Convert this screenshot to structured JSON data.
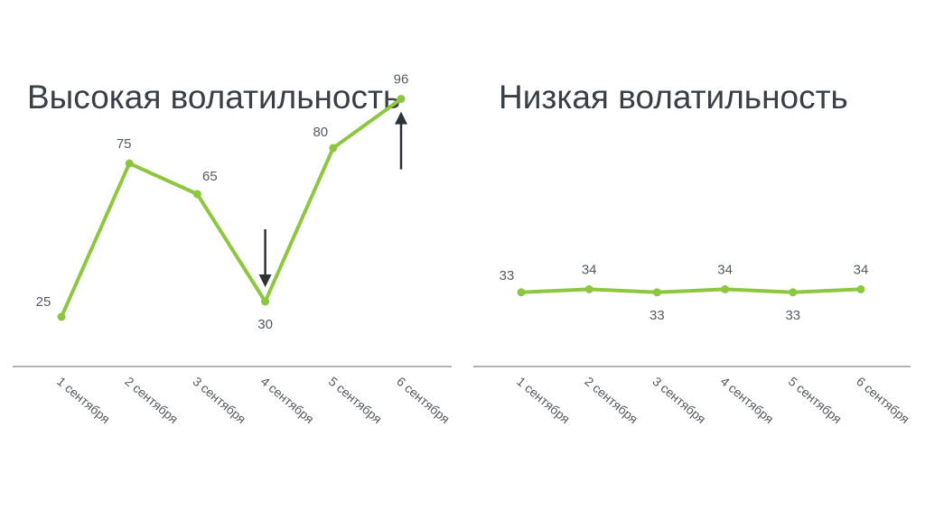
{
  "chart_data": [
    {
      "type": "line",
      "title": "Высокая волатильность",
      "categories": [
        "1 сентября",
        "2 сентября",
        "3 сентября",
        "4 сентября",
        "5 сентября",
        "6 сентября"
      ],
      "values": [
        25,
        75,
        65,
        30,
        80,
        96
      ],
      "ylim": [
        0,
        100
      ],
      "grid": false,
      "legend": "none",
      "annotations": [
        {
          "type": "arrow-down",
          "category": "4 сентября"
        },
        {
          "type": "arrow-up",
          "category": "6 сентября"
        }
      ]
    },
    {
      "type": "line",
      "title": "Низкая волатильность",
      "categories": [
        "1 сентября",
        "2 сентября",
        "3 сентября",
        "4 сентября",
        "5 сентября",
        "6 сентября"
      ],
      "values": [
        33,
        34,
        33,
        34,
        33,
        34
      ],
      "ylim": [
        0,
        100
      ],
      "grid": false,
      "legend": "none"
    }
  ],
  "colors": {
    "series": "#8dc63f",
    "axis": "#9a9a9a",
    "text": "#555b63",
    "title": "#3a3f47",
    "arrow": "#2d3239"
  },
  "icons": {
    "down": "arrow-down-icon",
    "up": "arrow-up-icon"
  }
}
